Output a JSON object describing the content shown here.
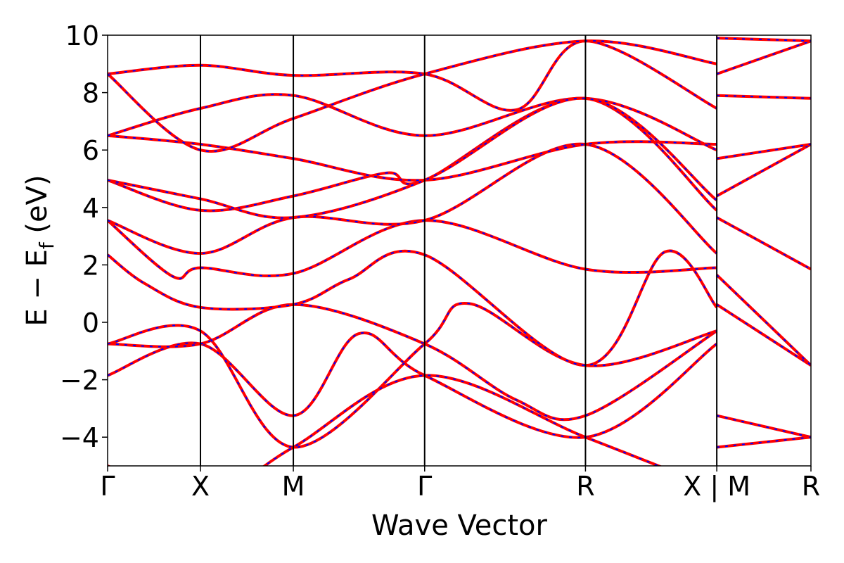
{
  "chart_data": {
    "type": "line",
    "title": "",
    "xlabel": "Wave Vector",
    "ylabel_main": "E − E",
    "ylabel_sub": "f",
    "ylabel_tail": " (eV)",
    "ylim": [
      -5,
      10
    ],
    "yticks": [
      -4,
      -2,
      0,
      2,
      4,
      6,
      8,
      10
    ],
    "ytick_labels": [
      "−4",
      "−2",
      "0",
      "2",
      "4",
      "6",
      "8",
      "10"
    ],
    "kpoints": [
      {
        "label": "Γ",
        "x": 0.0
      },
      {
        "label": "X",
        "x": 0.5
      },
      {
        "label": "M",
        "x": 1.0
      },
      {
        "label": "Γ",
        "x": 1.707
      },
      {
        "label": "R",
        "x": 2.573
      },
      {
        "label": "X | M",
        "x": 3.28
      },
      {
        "label": "R",
        "x": 3.787
      }
    ],
    "xlim": [
      0,
      3.787
    ],
    "line_colors": {
      "primary": "#ff0000",
      "overlay": "#0000ff"
    },
    "bands": [
      {
        "name": "",
        "x": [
          0,
          0.5,
          1.0,
          1.35,
          1.707,
          2.573,
          3.28,
          3.28,
          3.787
        ],
        "y": [
          -1.85,
          -0.75,
          -3.25,
          -0.4,
          -1.85,
          -4.0,
          -0.75,
          -3.25,
          -4.0
        ]
      },
      {
        "name": "",
        "x": [
          0,
          0.5,
          1.0,
          1.707,
          2.2,
          2.573,
          3.28,
          3.28,
          3.787
        ],
        "y": [
          -0.75,
          -0.75,
          0.62,
          -0.75,
          -2.7,
          -3.25,
          -0.3,
          -4.35,
          -4.0
        ]
      },
      {
        "name": "",
        "x": [
          0,
          0.5,
          1.0,
          1.707,
          1.95,
          2.573,
          3.28,
          3.28,
          3.787
        ],
        "y": [
          -0.75,
          -0.3,
          -4.35,
          -0.75,
          0.65,
          -1.5,
          -0.3,
          0.62,
          -1.5
        ]
      },
      {
        "name": "",
        "x": [
          0,
          0.2,
          0.5,
          1.0,
          1.3,
          1.707,
          2.573,
          3.0,
          3.28,
          3.28,
          3.787
        ],
        "y": [
          2.35,
          1.35,
          0.52,
          0.62,
          1.5,
          2.35,
          -1.5,
          2.45,
          0.52,
          1.65,
          -1.5
        ]
      },
      {
        "name": "",
        "x": [
          0,
          0.35,
          0.5,
          1.0,
          1.707,
          2.573,
          3.28,
          3.28,
          3.787
        ],
        "y": [
          3.55,
          1.6,
          1.9,
          1.7,
          3.55,
          1.85,
          1.9,
          3.65,
          1.85
        ]
      },
      {
        "name": "",
        "x": [
          0,
          0.5,
          1.0,
          1.707,
          2.573,
          3.28,
          3.28,
          3.787
        ],
        "y": [
          3.55,
          2.4,
          3.65,
          3.55,
          6.2,
          2.4,
          4.4,
          6.2
        ]
      },
      {
        "name": "",
        "x": [
          0,
          0.5,
          1.0,
          1.5,
          1.707,
          2.573,
          3.28,
          3.28,
          3.787
        ],
        "y": [
          4.95,
          3.9,
          4.4,
          5.2,
          4.95,
          7.8,
          3.9,
          5.7,
          6.2
        ]
      },
      {
        "name": "",
        "x": [
          0,
          0.5,
          1.0,
          1.707,
          2.573,
          3.28,
          3.28,
          3.787
        ],
        "y": [
          6.5,
          6.2,
          5.7,
          4.95,
          6.2,
          6.2,
          7.9,
          7.8
        ]
      },
      {
        "name": "",
        "x": [
          0,
          0.5,
          1.0,
          1.707,
          2.573,
          3.28,
          3.28,
          3.787
        ],
        "y": [
          6.5,
          7.45,
          7.9,
          6.5,
          7.8,
          6.0,
          8.65,
          9.8
        ]
      },
      {
        "name": "",
        "x": [
          0,
          0.5,
          1.0,
          1.707,
          2.2,
          2.573,
          3.28,
          3.28,
          3.787
        ],
        "y": [
          8.65,
          8.95,
          8.6,
          8.65,
          7.4,
          9.8,
          7.45,
          9.9,
          9.8
        ]
      },
      {
        "name": "",
        "x": [
          0,
          0.5,
          1.0,
          1.707,
          2.573,
          3.28
        ],
        "y": [
          -5.0,
          -6.2,
          -4.35,
          -1.85,
          -4.0,
          -5.8
        ]
      },
      {
        "name": "",
        "x": [
          0,
          0.5,
          1.0,
          1.707,
          2.573,
          3.28
        ],
        "y": [
          8.65,
          6.0,
          7.1,
          8.65,
          9.8,
          9.0
        ]
      },
      {
        "name": "",
        "x": [
          0,
          0.5,
          1.0,
          1.707,
          2.573,
          3.28
        ],
        "y": [
          4.95,
          4.3,
          3.65,
          4.95,
          7.8,
          4.25
        ]
      }
    ]
  }
}
